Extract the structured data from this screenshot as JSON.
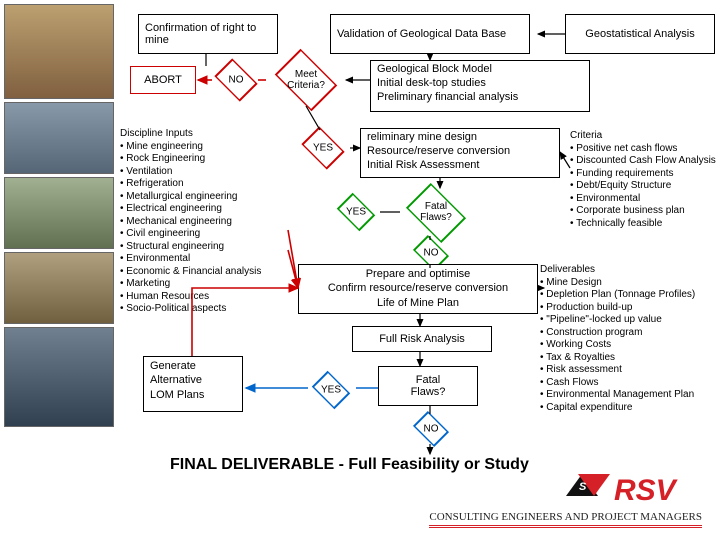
{
  "colors": {
    "red": "#c00",
    "blue": "#06c",
    "black": "#000",
    "green": "#090",
    "logo_red": "#d62027"
  },
  "nodes": {
    "confirm": {
      "text": "Confirmation of right to mine"
    },
    "validation": {
      "text": "Validation of Geological Data Base"
    },
    "geostat": {
      "text": "Geostatistical Analysis"
    },
    "abort": {
      "text": "ABORT"
    },
    "meet_criteria": {
      "text": "Meet\nCriteria?"
    },
    "gbm": {
      "lines": [
        "Geological Block Model",
        "Initial desk-top studies",
        "Preliminary financial analysis"
      ]
    },
    "prelim": {
      "lines": [
        "reliminary mine design",
        "Resource/reserve conversion",
        "Initial Risk Assessment"
      ]
    },
    "fatal1": {
      "text": "Fatal\nFlaws?"
    },
    "prepare": {
      "lines": [
        "Prepare and optimise",
        "Confirm resource/reserve conversion",
        "Life of Mine Plan"
      ]
    },
    "full_risk": {
      "text": "Full Risk Analysis"
    },
    "fatal2": {
      "text": "Fatal\nFlaws?"
    },
    "gen_alt": {
      "lines": [
        "Generate",
        "Alternative",
        "LOM Plans"
      ]
    }
  },
  "labels": {
    "no1": "NO",
    "yes1": "YES",
    "yes2": "YES",
    "no2": "NO",
    "yes3": "YES",
    "no3": "NO"
  },
  "lists": {
    "discipline": {
      "title": "Discipline Inputs",
      "items": [
        "Mine engineering",
        "Rock Engineering",
        "Ventilation",
        "Refrigeration",
        "Metallurgical engineering",
        "Electrical engineering",
        "Mechanical engineering",
        "Civil engineering",
        "Structural engineering",
        "Environmental",
        "Economic & Financial analysis",
        "Marketing",
        "Human Resources",
        "Socio-Political aspects"
      ]
    },
    "criteria": {
      "title": "Criteria",
      "items": [
        "Positive net cash flows",
        "Discounted Cash Flow Analysis",
        "Funding requirements",
        "Debt/Equity Structure",
        "Environmental",
        "Corporate business plan",
        "Technically feasible"
      ]
    },
    "deliverables": {
      "title": "Deliverables",
      "items": [
        "Mine Design",
        "Depletion Plan (Tonnage Profiles)",
        "Production build-up",
        "\"Pipeline\"-locked up value",
        "Construction program",
        "Working Costs",
        "Tax & Royalties",
        "Risk assessment",
        "Cash Flows",
        "Environmental Management Plan",
        "Capital expenditure"
      ]
    }
  },
  "final": "FINAL  DELIVERABLE   -   Full Feasibility  or  Study",
  "logo": {
    "main": "RSV",
    "sub": "CONSULTING ENGINEERS AND PROJECT MANAGERS"
  },
  "images": {
    "count": 5,
    "heights": [
      95,
      72,
      72,
      72,
      100
    ]
  },
  "diamond_colors": {
    "meet_criteria": "#c00",
    "fatal1": "#090",
    "fatal2": "#06c"
  }
}
